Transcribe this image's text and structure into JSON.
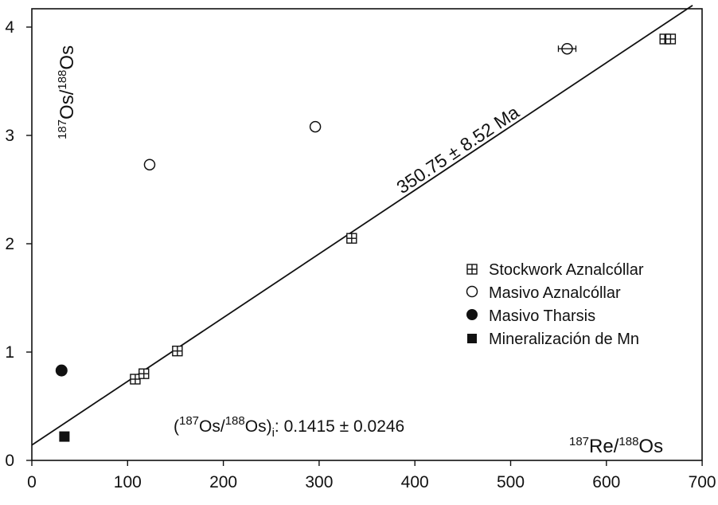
{
  "chart_data": {
    "type": "scatter",
    "xlim": [
      0,
      700
    ],
    "ylim": [
      0,
      4.2
    ],
    "x_ticks": [
      "0",
      "100",
      "200",
      "300",
      "400",
      "500",
      "600",
      "700"
    ],
    "y_ticks": [
      "0",
      "1",
      "2",
      "3",
      "4"
    ],
    "ylabel": {
      "sup1": "187",
      "base1": "Os/",
      "sup2": "188",
      "base2": "Os"
    },
    "xlabel": {
      "sup1": "187",
      "base1": "Re/",
      "sup2": "188",
      "base2": "Os"
    },
    "grid": false,
    "legend_position": "right-middle",
    "series": [
      {
        "name": "Stockwork Aznalcóllar",
        "marker": "boxed-cross",
        "points": [
          [
            108,
            0.75
          ],
          [
            117,
            0.8
          ],
          [
            152,
            1.01
          ],
          [
            334,
            2.05
          ],
          [
            661,
            3.89
          ],
          [
            667,
            3.89
          ]
        ]
      },
      {
        "name": "Masivo Aznalcóllar",
        "marker": "open-circle",
        "points": [
          [
            123,
            2.73
          ],
          [
            296,
            3.08
          ],
          [
            559,
            3.8
          ]
        ]
      },
      {
        "name": "Masivo Tharsis",
        "marker": "filled-circle",
        "points": [
          [
            31,
            0.83
          ]
        ]
      },
      {
        "name": "Mineralización de Mn",
        "marker": "filled-square",
        "points": [
          [
            34,
            0.22
          ]
        ]
      }
    ],
    "fit_line": {
      "label": "350.75 ± 8.52 Ma",
      "intercept": 0.1415,
      "slope": 0.005883,
      "x_range": [
        0,
        690
      ]
    },
    "initial_ratio_annotation": {
      "paren_open": "(",
      "sup1": "187",
      "base1": "Os/",
      "sup2": "188",
      "base2": "Os)",
      "sub": "i",
      "value": ": 0.1415 ± 0.0246"
    }
  }
}
